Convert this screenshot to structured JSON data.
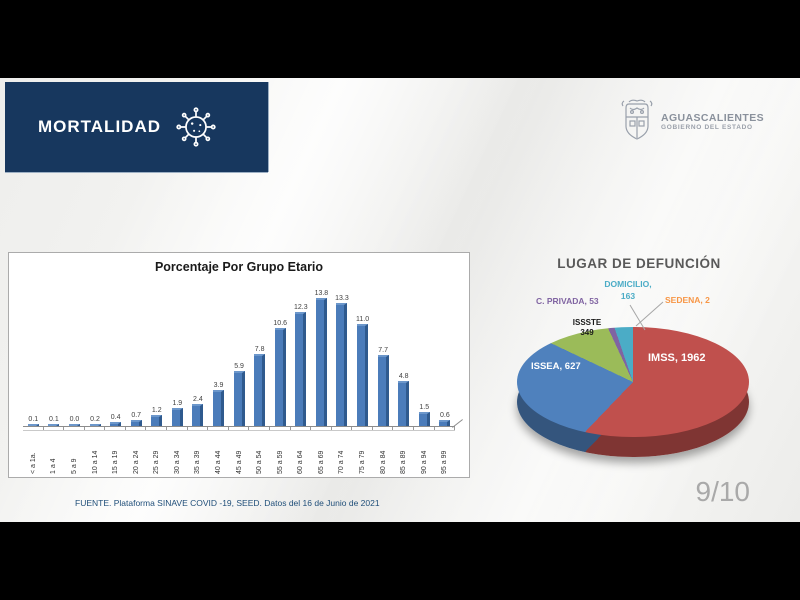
{
  "header": {
    "title": "MORTALIDAD"
  },
  "logo": {
    "name": "AGUASCALIENTES",
    "subtitle": "GOBIERNO DEL ESTADO"
  },
  "footer": {
    "source": "FUENTE. Plataforma SINAVE COVID -19, SEED. Datos del 16 de Junio de 2021"
  },
  "page": {
    "number": "9/10"
  },
  "colors": {
    "header_bg": "#17375e",
    "bar": "#4b7cba",
    "footer_text": "#1f4e79"
  },
  "chart_data": [
    {
      "type": "bar",
      "title": "Porcentaje Por Grupo Etario",
      "categories": [
        "< a 1a.",
        "1 a 4",
        "5 a 9",
        "10 a 14",
        "15 a 19",
        "20 a 24",
        "25 a 29",
        "30 a 34",
        "35 a 39",
        "40 a 44",
        "45 a 49",
        "50 a 54",
        "55 a 59",
        "60 a 64",
        "65 a 69",
        "70 a 74",
        "75 a 79",
        "80 a 84",
        "85 a 89",
        "90 a 94",
        "95 a 99"
      ],
      "values": [
        0.1,
        0.1,
        0.0,
        0.2,
        0.4,
        0.7,
        1.2,
        1.9,
        2.4,
        3.9,
        5.9,
        7.8,
        10.6,
        12.3,
        13.8,
        13.3,
        11.0,
        7.7,
        4.8,
        1.5,
        0.6
      ],
      "xlabel": "",
      "ylabel": "",
      "ylim": [
        0,
        14
      ],
      "grid": false,
      "value_labels": true,
      "bar_color": "#4b7cba",
      "effect": "3d"
    },
    {
      "type": "pie",
      "title": "LUGAR DE DEFUNCIÓN",
      "effect": "3d",
      "start_angle": 0,
      "direction": "clockwise",
      "slices": [
        {
          "label": "IMSS",
          "value": 1962,
          "color": "#c0504d",
          "label_text": "IMSS, 1962",
          "label_color": "#ffffff"
        },
        {
          "label": "ISSEA",
          "value": 627,
          "color": "#4f81bd",
          "label_text": "ISSEA, 627",
          "label_color": "#ffffff"
        },
        {
          "label": "ISSSTE",
          "value": 349,
          "color": "#9bbb59",
          "label_text": "ISSSTE\n349",
          "label_color": "#1a1a1a"
        },
        {
          "label": "C. PRIVADA",
          "value": 53,
          "color": "#8064a2",
          "label_text": "C. PRIVADA, 53",
          "label_color": "#8064a2"
        },
        {
          "label": "DOMICILIO",
          "value": 163,
          "color": "#4bacc6",
          "label_text": "DOMICILIO,\n163",
          "label_color": "#4bacc6"
        },
        {
          "label": "SEDENA",
          "value": 2,
          "color": "#f79646",
          "label_text": "SEDENA, 2",
          "label_color": "#f79646"
        }
      ]
    }
  ]
}
